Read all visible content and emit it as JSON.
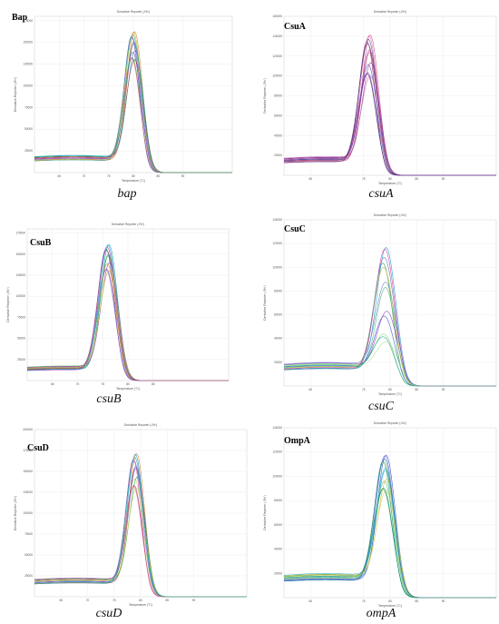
{
  "chart_data": [
    {
      "type": "line",
      "label": "Bap",
      "caption": "bap",
      "header": "Derivative Reporter (-Rn')",
      "xlabel": "Temperature (°C)",
      "ylabel": "Derivative Reporter (-Rn')",
      "xlim": [
        60,
        100
      ],
      "ylim": [
        0,
        180000
      ],
      "xticks": [
        65,
        70,
        75,
        80,
        85,
        90
      ],
      "yticks": [
        25000,
        50000,
        75000,
        100000,
        125000,
        150000,
        175000
      ],
      "peak_x": 80,
      "peak_width": 1.6,
      "baseline": 16000,
      "peak_range": [
        130000,
        163000
      ],
      "colors": [
        "#3a4fc2",
        "#d63b9c",
        "#2ea14a",
        "#e07b2c",
        "#8a3bb8",
        "#1b9ad6",
        "#c8b52e",
        "#e35d6a",
        "#17a897",
        "#6a6fd6",
        "#9c4b2a",
        "#47c06b"
      ],
      "description_note": ""
    },
    {
      "type": "line",
      "label": "CsuA",
      "caption": "csuA",
      "header": "Derivative Reporter (-Rn')",
      "xlabel": "Temperature (°C)",
      "ylabel": "Derivative Reporter (-Rn')",
      "xlim": [
        60,
        100
      ],
      "ylim": [
        0,
        160000
      ],
      "xticks": [
        65,
        75,
        80,
        85,
        90
      ],
      "yticks": [
        20000,
        40000,
        60000,
        80000,
        100000,
        120000,
        140000,
        160000
      ],
      "peak_x": 76,
      "peak_width": 1.6,
      "baseline": 15000,
      "peak_range": [
        100000,
        142000
      ],
      "colors": [
        "#8a2d5a",
        "#c0396b",
        "#6b3ba6",
        "#d14a8a",
        "#3a4fc2",
        "#9c3b8c",
        "#e07b9c",
        "#5a2d7a",
        "#b34ab0",
        "#7a3b5a",
        "#c86aa8",
        "#4e3ba6"
      ]
    },
    {
      "type": "line",
      "label": "CsuB",
      "caption": "csuB",
      "header": "Derivative Reporter (-Rn')",
      "xlabel": "Temperature (°C)",
      "ylabel": "Derivative Reporter (-Rn')",
      "xlim": [
        60,
        100
      ],
      "ylim": [
        0,
        180000
      ],
      "xticks": [
        65,
        70,
        75,
        80,
        85
      ],
      "yticks": [
        25000,
        50000,
        75000,
        100000,
        125000,
        150000,
        175000
      ],
      "peak_x": 76,
      "peak_width": 1.7,
      "baseline": 14000,
      "peak_range": [
        130000,
        162000
      ],
      "colors": [
        "#3a4fc2",
        "#2ea14a",
        "#d63b9c",
        "#17a897",
        "#e07b2c",
        "#8a3bb8",
        "#1b9ad6",
        "#6a6fd6",
        "#47c06b",
        "#9c4b2a",
        "#c8b52e",
        "#b04ad6"
      ]
    },
    {
      "type": "line",
      "label": "CsuC",
      "caption": "csuC",
      "header": "Derivative Reporter (-Rn')",
      "xlabel": "Temperature (°C)",
      "ylabel": "Derivative Reporter (-Rn')",
      "xlim": [
        60,
        100
      ],
      "ylim": [
        0,
        140000
      ],
      "xticks": [
        65,
        75,
        80,
        85,
        90
      ],
      "yticks": [
        20000,
        40000,
        60000,
        80000,
        100000,
        120000,
        140000
      ],
      "peak_x": 79,
      "peak_width": 1.8,
      "baseline": 16000,
      "peak_range": [
        37000,
        118000
      ],
      "colors": [
        "#2ea14a",
        "#47c06b",
        "#7ad36a",
        "#1b9ad6",
        "#3a4fc2",
        "#8a3bb8",
        "#d63b9c",
        "#17a897",
        "#6a6fd6",
        "#c8b52e",
        "#9be38a",
        "#5a6fb8"
      ]
    },
    {
      "type": "line",
      "label": "CsuD",
      "caption": "csuD",
      "header": "Derivative Reporter (-Rn')",
      "xlabel": "Temperature (°C)",
      "ylabel": "Derivative Reporter (-Rn')",
      "xlim": [
        60,
        100
      ],
      "ylim": [
        0,
        200000
      ],
      "xticks": [
        65,
        70,
        75,
        80,
        85,
        90
      ],
      "yticks": [
        25000,
        50000,
        75000,
        100000,
        125000,
        150000,
        175000,
        200000
      ],
      "peak_x": 79,
      "peak_width": 1.5,
      "baseline": 18000,
      "peak_range": [
        130000,
        172000
      ],
      "colors": [
        "#d63b9c",
        "#3a4fc2",
        "#8a3bb8",
        "#e07b2c",
        "#c8e060",
        "#2ea14a",
        "#1b9ad6",
        "#e35d6a",
        "#9c3b8c",
        "#6a6fd6",
        "#b8d84a",
        "#17a897"
      ]
    },
    {
      "type": "line",
      "label": "OmpA",
      "caption": "ompA",
      "header": "Derivative Reporter (-Rn')",
      "xlabel": "Temperature (°C)",
      "ylabel": "Derivative Reporter (-Rn')",
      "xlim": [
        60,
        100
      ],
      "ylim": [
        0,
        140000
      ],
      "xticks": [
        65,
        75,
        80,
        85,
        90
      ],
      "yticks": [
        20000,
        40000,
        60000,
        80000,
        100000,
        120000,
        140000
      ],
      "peak_x": 79,
      "peak_width": 1.7,
      "baseline": 16000,
      "peak_range": [
        88000,
        118000
      ],
      "colors": [
        "#17a897",
        "#1b9ad6",
        "#2ea14a",
        "#3a4fc2",
        "#47c06b",
        "#c8b52e",
        "#6a6fd6",
        "#0f8a7a",
        "#2db5c8",
        "#8ab84a",
        "#d8d060",
        "#1f6fb8"
      ]
    }
  ]
}
